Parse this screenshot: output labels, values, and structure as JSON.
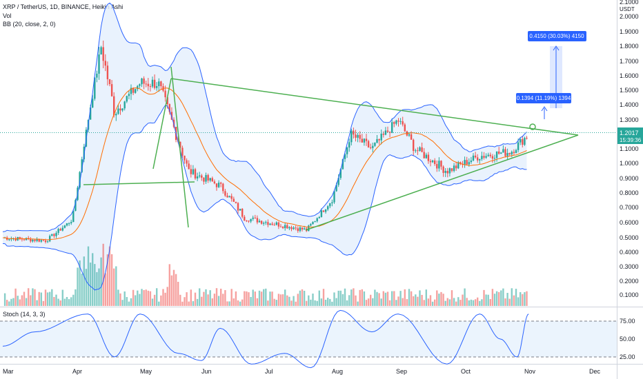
{
  "legend": {
    "main": "XRP / TetherUS, 1D, BINANCE, Heikin Ashi",
    "vol": "Vol",
    "bb": "BB (20, close, 2, 0)",
    "stoch": "Stoch (14, 3, 3)"
  },
  "price_badge": {
    "price": "1.2017",
    "countdown": "15:39:36",
    "color": "#26a69a"
  },
  "unit": "USDT",
  "annotations": {
    "upper": "0.4150 (30.03%) 4150",
    "lower": "0.1394 (11.19%) 1394",
    "color": "#2962ff"
  },
  "colors": {
    "up": "#26a69a",
    "down": "#ef5350",
    "bb": "#2962ff",
    "bbfill": "#e3effc",
    "basis": "#ff6d00",
    "trend": "#4caf50",
    "stoch": "#2962ff"
  },
  "chart_data": {
    "type": "candlestick",
    "y_ticks": [
      "0.1000",
      "0.2000",
      "0.3000",
      "0.4000",
      "0.5000",
      "0.6000",
      "0.7000",
      "0.8000",
      "0.9000",
      "1.0000",
      "1.1000",
      "1.2000",
      "1.3000",
      "1.4000",
      "1.5000",
      "1.6000",
      "1.7000",
      "1.8000",
      "1.9000",
      "2.0000"
    ],
    "y_top_partial": "2.1000",
    "stoch_ticks": [
      "75.00",
      "50.00",
      "25.00"
    ],
    "x_ticks": [
      "Mar",
      "Apr",
      "May",
      "Jun",
      "Jul",
      "Aug",
      "Sep",
      "Oct",
      "Nov",
      "Dec"
    ],
    "price_key_points": [
      {
        "date": "Mar 01",
        "price": 0.5
      },
      {
        "date": "Mar 20",
        "price": 0.48
      },
      {
        "date": "Apr 01",
        "price": 0.62
      },
      {
        "date": "Apr 08",
        "price": 1.3
      },
      {
        "date": "Apr 14",
        "price": 1.8
      },
      {
        "date": "Apr 20",
        "price": 1.35
      },
      {
        "date": "May 01",
        "price": 1.55
      },
      {
        "date": "May 10",
        "price": 1.55
      },
      {
        "date": "May 19",
        "price": 1.2
      },
      {
        "date": "May 25",
        "price": 0.95
      },
      {
        "date": "Jun 10",
        "price": 0.85
      },
      {
        "date": "Jun 22",
        "price": 0.63
      },
      {
        "date": "Jul 10",
        "price": 0.58
      },
      {
        "date": "Jul 20",
        "price": 0.55
      },
      {
        "date": "Aug 01",
        "price": 0.75
      },
      {
        "date": "Aug 10",
        "price": 1.2
      },
      {
        "date": "Aug 20",
        "price": 1.1
      },
      {
        "date": "Sep 02",
        "price": 1.3
      },
      {
        "date": "Sep 10",
        "price": 1.1
      },
      {
        "date": "Sep 25",
        "price": 0.95
      },
      {
        "date": "Oct 10",
        "price": 1.05
      },
      {
        "date": "Oct 25",
        "price": 1.08
      },
      {
        "date": "Nov 03",
        "price": 1.2
      }
    ],
    "stoch_key_points": [
      {
        "date": "Mar 01",
        "k": 40
      },
      {
        "date": "Mar 15",
        "k": 60
      },
      {
        "date": "Apr 08",
        "k": 85
      },
      {
        "date": "Apr 20",
        "k": 25
      },
      {
        "date": "May 01",
        "k": 85
      },
      {
        "date": "May 20",
        "k": 30
      },
      {
        "date": "Jun 01",
        "k": 20
      },
      {
        "date": "Jun 10",
        "k": 65
      },
      {
        "date": "Jun 25",
        "k": 15
      },
      {
        "date": "Jul 10",
        "k": 30
      },
      {
        "date": "Jul 22",
        "k": 10
      },
      {
        "date": "Aug 05",
        "k": 90
      },
      {
        "date": "Aug 20",
        "k": 60
      },
      {
        "date": "Sep 02",
        "k": 85
      },
      {
        "date": "Sep 25",
        "k": 15
      },
      {
        "date": "Oct 10",
        "k": 85
      },
      {
        "date": "Oct 20",
        "k": 50
      },
      {
        "date": "Oct 28",
        "k": 25
      },
      {
        "date": "Nov 03",
        "k": 85
      }
    ]
  }
}
